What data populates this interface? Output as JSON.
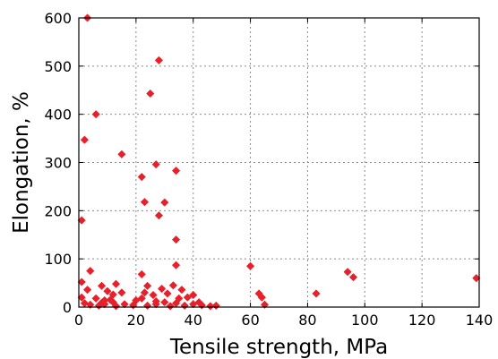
{
  "chart_data": {
    "type": "scatter",
    "xlabel": "Tensile strength, MPa",
    "ylabel": "Elongation, %",
    "xlim": [
      0,
      140
    ],
    "ylim": [
      0,
      600
    ],
    "xticks": [
      0,
      20,
      40,
      60,
      80,
      100,
      120,
      140
    ],
    "yticks": [
      0,
      100,
      200,
      300,
      400,
      500,
      600
    ],
    "grid": true,
    "marker": "diamond",
    "color": "#e8202a",
    "points": [
      [
        3,
        600
      ],
      [
        28,
        512
      ],
      [
        25,
        443
      ],
      [
        6,
        400
      ],
      [
        2,
        347
      ],
      [
        15,
        317
      ],
      [
        27,
        296
      ],
      [
        34,
        283
      ],
      [
        22,
        270
      ],
      [
        30,
        217
      ],
      [
        23,
        218
      ],
      [
        28,
        190
      ],
      [
        1,
        180
      ],
      [
        34,
        140
      ],
      [
        34,
        87
      ],
      [
        60,
        85
      ],
      [
        4,
        75
      ],
      [
        22,
        68
      ],
      [
        94,
        73
      ],
      [
        96,
        62
      ],
      [
        139,
        60
      ],
      [
        1,
        52
      ],
      [
        13,
        48
      ],
      [
        8,
        44
      ],
      [
        24,
        44
      ],
      [
        33,
        45
      ],
      [
        29,
        38
      ],
      [
        36,
        36
      ],
      [
        3,
        36
      ],
      [
        10,
        33
      ],
      [
        15,
        30
      ],
      [
        23,
        30
      ],
      [
        26,
        25
      ],
      [
        31,
        28
      ],
      [
        12,
        26
      ],
      [
        83,
        28
      ],
      [
        63,
        28
      ],
      [
        64,
        20
      ],
      [
        1,
        20
      ],
      [
        6,
        18
      ],
      [
        9,
        14
      ],
      [
        11,
        15
      ],
      [
        20,
        14
      ],
      [
        22,
        18
      ],
      [
        27,
        12
      ],
      [
        30,
        10
      ],
      [
        35,
        18
      ],
      [
        38,
        20
      ],
      [
        40,
        25
      ],
      [
        42,
        10
      ],
      [
        2,
        8
      ],
      [
        4,
        5
      ],
      [
        7,
        3
      ],
      [
        9,
        6
      ],
      [
        12,
        10
      ],
      [
        16,
        6
      ],
      [
        19,
        4
      ],
      [
        24,
        3
      ],
      [
        27,
        6
      ],
      [
        32,
        2
      ],
      [
        34,
        8
      ],
      [
        37,
        3
      ],
      [
        40,
        6
      ],
      [
        43,
        4
      ],
      [
        46,
        2
      ],
      [
        48,
        3
      ],
      [
        65,
        5
      ],
      [
        8,
        9
      ],
      [
        13,
        2
      ]
    ]
  }
}
